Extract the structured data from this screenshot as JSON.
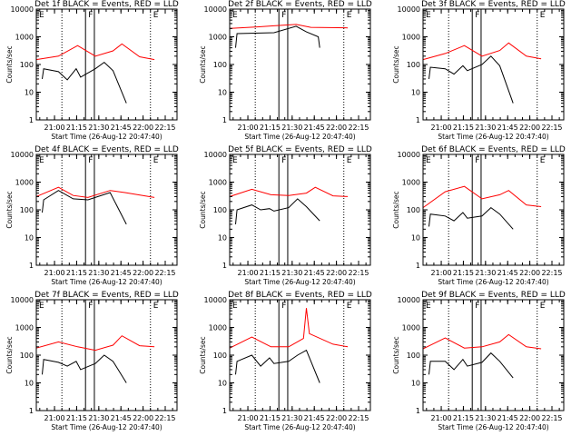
{
  "colors": {
    "events": "#000000",
    "lld": "#ff0000",
    "frame": "#000000",
    "background": "#ffffff"
  },
  "shared": {
    "y_label": "Counts/sec",
    "x_label": "Start Time (26-Aug-12 20:47:40)",
    "x_tick_labels": [
      "21:00",
      "21:15",
      "21:30",
      "21:45",
      "22:00",
      "22:15"
    ],
    "y_tick_labels": [
      "1",
      "10",
      "100",
      "1000",
      "10000"
    ],
    "segment_labels": [
      "E",
      "F",
      "E"
    ]
  },
  "chart_data": [
    {
      "type": "line",
      "title": "Det 1f BLACK = Events, RED = LLD",
      "xlabel": "Start Time (26-Aug-12 20:47:40)",
      "ylabel": "Counts/sec",
      "ylim": [
        1,
        10000
      ],
      "yscale": "log",
      "xlim": [
        "20:47:40",
        "22:23:00"
      ],
      "x_ticks": [
        "21:00",
        "21:15",
        "21:30",
        "21:45",
        "22:00",
        "22:15"
      ],
      "markers": {
        "dotted": [
          "21:05",
          "22:05"
        ],
        "solid": [
          "21:21",
          "21:27"
        ],
        "labels": [
          "E",
          "F",
          "E"
        ]
      },
      "red": [
        [
          0,
          150
        ],
        [
          15,
          200
        ],
        [
          28,
          480
        ],
        [
          40,
          200
        ],
        [
          52,
          310
        ],
        [
          58,
          550
        ],
        [
          70,
          190
        ],
        [
          80,
          150
        ]
      ],
      "black": [
        [
          4,
          30
        ],
        [
          5,
          70
        ],
        [
          15,
          55
        ],
        [
          21,
          28
        ],
        [
          27,
          70
        ],
        [
          30,
          35
        ],
        [
          40,
          70
        ],
        [
          46,
          120
        ],
        [
          52,
          60
        ],
        [
          61,
          4
        ]
      ]
    },
    {
      "type": "line",
      "title": "Det 2f BLACK = Events, RED = LLD",
      "xlabel": "Start Time (26-Aug-12 20:47:40)",
      "ylabel": "Counts/sec",
      "ylim": [
        1,
        10000
      ],
      "yscale": "log",
      "xlim": [
        "20:47:40",
        "22:23:00"
      ],
      "x_ticks": [
        "21:00",
        "21:15",
        "21:30",
        "21:45",
        "22:00",
        "22:15"
      ],
      "markers": {
        "dotted": [
          "21:05",
          "22:05"
        ],
        "solid": [
          "21:21",
          "21:27"
        ],
        "labels": [
          "E",
          "F",
          "E"
        ]
      },
      "red": [
        [
          0,
          2000
        ],
        [
          20,
          2300
        ],
        [
          30,
          2500
        ],
        [
          45,
          2800
        ],
        [
          55,
          2200
        ],
        [
          80,
          2100
        ]
      ],
      "black": [
        [
          4,
          400
        ],
        [
          5,
          1300
        ],
        [
          30,
          1400
        ],
        [
          45,
          2400
        ],
        [
          52,
          1500
        ],
        [
          60,
          1000
        ],
        [
          61,
          400
        ]
      ]
    },
    {
      "type": "line",
      "title": "Det 3f BLACK = Events, RED = LLD",
      "xlabel": "Start Time (26-Aug-12 20:47:40)",
      "ylabel": "Counts/sec",
      "ylim": [
        1,
        10000
      ],
      "yscale": "log",
      "xlim": [
        "20:47:40",
        "22:23:00"
      ],
      "x_ticks": [
        "21:00",
        "21:15",
        "21:30",
        "21:45",
        "22:00",
        "22:15"
      ],
      "markers": {
        "dotted": [
          "21:05",
          "22:05"
        ],
        "solid": [
          "21:21",
          "21:27"
        ],
        "labels": [
          "E",
          "F",
          "E"
        ]
      },
      "red": [
        [
          0,
          150
        ],
        [
          15,
          250
        ],
        [
          28,
          480
        ],
        [
          40,
          200
        ],
        [
          52,
          320
        ],
        [
          58,
          600
        ],
        [
          70,
          200
        ],
        [
          80,
          160
        ]
      ],
      "black": [
        [
          4,
          30
        ],
        [
          5,
          80
        ],
        [
          15,
          70
        ],
        [
          21,
          45
        ],
        [
          27,
          90
        ],
        [
          30,
          60
        ],
        [
          40,
          100
        ],
        [
          46,
          200
        ],
        [
          52,
          90
        ],
        [
          61,
          4
        ]
      ]
    },
    {
      "type": "line",
      "title": "Det 4f BLACK = Events, RED = LLD",
      "xlabel": "Start Time (26-Aug-12 20:47:40)",
      "ylabel": "Counts/sec",
      "ylim": [
        1,
        10000
      ],
      "yscale": "log",
      "xlim": [
        "20:47:40",
        "22:23:00"
      ],
      "x_ticks": [
        "21:00",
        "21:15",
        "21:30",
        "21:45",
        "22:00",
        "22:15"
      ],
      "markers": {
        "dotted": [
          "21:05",
          "22:05"
        ],
        "solid": [
          "21:21",
          "21:27"
        ],
        "labels": [
          "E",
          "F",
          "E"
        ]
      },
      "red": [
        [
          0,
          300
        ],
        [
          15,
          650
        ],
        [
          25,
          330
        ],
        [
          35,
          280
        ],
        [
          50,
          500
        ],
        [
          60,
          420
        ],
        [
          80,
          280
        ]
      ],
      "black": [
        [
          4,
          80
        ],
        [
          5,
          230
        ],
        [
          15,
          500
        ],
        [
          25,
          250
        ],
        [
          35,
          230
        ],
        [
          50,
          420
        ],
        [
          61,
          30
        ]
      ]
    },
    {
      "type": "line",
      "title": "Det 5f BLACK = Events, RED = LLD",
      "xlabel": "Start Time (26-Aug-12 20:47:40)",
      "ylabel": "Counts/sec",
      "ylim": [
        1,
        10000
      ],
      "yscale": "log",
      "xlim": [
        "20:47:40",
        "22:23:00"
      ],
      "x_ticks": [
        "21:00",
        "21:15",
        "21:30",
        "21:45",
        "22:00",
        "22:15"
      ],
      "markers": {
        "dotted": [
          "21:05",
          "22:05"
        ],
        "solid": [
          "21:21",
          "21:27"
        ],
        "labels": [
          "E",
          "F",
          "E"
        ]
      },
      "red": [
        [
          0,
          300
        ],
        [
          15,
          550
        ],
        [
          28,
          350
        ],
        [
          40,
          330
        ],
        [
          52,
          400
        ],
        [
          58,
          650
        ],
        [
          70,
          320
        ],
        [
          80,
          300
        ]
      ],
      "black": [
        [
          4,
          30
        ],
        [
          5,
          100
        ],
        [
          15,
          150
        ],
        [
          21,
          100
        ],
        [
          27,
          110
        ],
        [
          30,
          90
        ],
        [
          40,
          120
        ],
        [
          46,
          250
        ],
        [
          52,
          130
        ],
        [
          61,
          40
        ]
      ]
    },
    {
      "type": "line",
      "title": "Det 6f BLACK = Events, RED = LLD",
      "xlabel": "Start Time (26-Aug-12 20:47:40)",
      "ylabel": "Counts/sec",
      "ylim": [
        1,
        10000
      ],
      "yscale": "log",
      "xlim": [
        "20:47:40",
        "22:23:00"
      ],
      "x_ticks": [
        "21:00",
        "21:15",
        "21:30",
        "21:45",
        "22:00",
        "22:15"
      ],
      "markers": {
        "dotted": [
          "21:05",
          "22:05"
        ],
        "solid": [
          "21:21",
          "21:27"
        ],
        "labels": [
          "E",
          "F",
          "E"
        ]
      },
      "red": [
        [
          0,
          120
        ],
        [
          15,
          450
        ],
        [
          28,
          700
        ],
        [
          40,
          250
        ],
        [
          52,
          350
        ],
        [
          58,
          500
        ],
        [
          70,
          150
        ],
        [
          80,
          130
        ]
      ],
      "black": [
        [
          4,
          25
        ],
        [
          5,
          70
        ],
        [
          15,
          60
        ],
        [
          21,
          40
        ],
        [
          27,
          80
        ],
        [
          30,
          50
        ],
        [
          40,
          60
        ],
        [
          46,
          120
        ],
        [
          52,
          70
        ],
        [
          61,
          20
        ]
      ]
    },
    {
      "type": "line",
      "title": "Det 7f BLACK = Events, RED = LLD",
      "xlabel": "Start Time (26-Aug-12 20:47:40)",
      "ylabel": "Counts/sec",
      "ylim": [
        1,
        10000
      ],
      "yscale": "log",
      "xlim": [
        "20:47:40",
        "22:23:00"
      ],
      "x_ticks": [
        "21:00",
        "21:15",
        "21:30",
        "21:45",
        "22:00",
        "22:15"
      ],
      "markers": {
        "dotted": [
          "21:05",
          "22:05"
        ],
        "solid": [
          "21:21",
          "21:27"
        ],
        "labels": [
          "E",
          "F",
          "E"
        ]
      },
      "red": [
        [
          0,
          180
        ],
        [
          15,
          300
        ],
        [
          28,
          200
        ],
        [
          40,
          150
        ],
        [
          52,
          230
        ],
        [
          58,
          500
        ],
        [
          70,
          220
        ],
        [
          80,
          200
        ]
      ],
      "black": [
        [
          4,
          20
        ],
        [
          5,
          70
        ],
        [
          15,
          55
        ],
        [
          21,
          40
        ],
        [
          27,
          60
        ],
        [
          30,
          30
        ],
        [
          40,
          50
        ],
        [
          46,
          100
        ],
        [
          52,
          60
        ],
        [
          61,
          10
        ]
      ]
    },
    {
      "type": "line",
      "title": "Det 8f BLACK = Events, RED = LLD",
      "xlabel": "Start Time (26-Aug-12 20:47:40)",
      "ylabel": "Counts/sec",
      "ylim": [
        1,
        10000
      ],
      "yscale": "log",
      "xlim": [
        "20:47:40",
        "22:23:00"
      ],
      "x_ticks": [
        "21:00",
        "21:15",
        "21:30",
        "21:45",
        "22:00",
        "22:15"
      ],
      "markers": {
        "dotted": [
          "21:05",
          "22:05"
        ],
        "solid": [
          "21:21",
          "21:27"
        ],
        "labels": [
          "E",
          "F",
          "E"
        ]
      },
      "red": [
        [
          0,
          180
        ],
        [
          15,
          450
        ],
        [
          28,
          200
        ],
        [
          40,
          200
        ],
        [
          50,
          400
        ],
        [
          52,
          5000
        ],
        [
          54,
          600
        ],
        [
          70,
          250
        ],
        [
          80,
          200
        ]
      ],
      "black": [
        [
          4,
          20
        ],
        [
          5,
          60
        ],
        [
          15,
          100
        ],
        [
          21,
          40
        ],
        [
          27,
          80
        ],
        [
          30,
          50
        ],
        [
          40,
          60
        ],
        [
          46,
          100
        ],
        [
          52,
          150
        ],
        [
          61,
          10
        ]
      ]
    },
    {
      "type": "line",
      "title": "Det 9f BLACK = Events, RED = LLD",
      "xlabel": "Start Time (26-Aug-12 20:47:40)",
      "ylabel": "Counts/sec",
      "ylim": [
        1,
        10000
      ],
      "yscale": "log",
      "xlim": [
        "20:47:40",
        "22:23:00"
      ],
      "x_ticks": [
        "21:00",
        "21:15",
        "21:30",
        "21:45",
        "22:00",
        "22:15"
      ],
      "markers": {
        "dotted": [
          "21:05",
          "22:05"
        ],
        "solid": [
          "21:21",
          "21:27"
        ],
        "labels": [
          "E",
          "F",
          "E"
        ]
      },
      "red": [
        [
          0,
          170
        ],
        [
          15,
          420
        ],
        [
          28,
          180
        ],
        [
          40,
          200
        ],
        [
          52,
          300
        ],
        [
          58,
          550
        ],
        [
          70,
          200
        ],
        [
          80,
          170
        ]
      ],
      "black": [
        [
          4,
          20
        ],
        [
          5,
          60
        ],
        [
          15,
          60
        ],
        [
          21,
          30
        ],
        [
          27,
          70
        ],
        [
          30,
          40
        ],
        [
          40,
          55
        ],
        [
          46,
          120
        ],
        [
          52,
          60
        ],
        [
          61,
          15
        ]
      ]
    }
  ]
}
